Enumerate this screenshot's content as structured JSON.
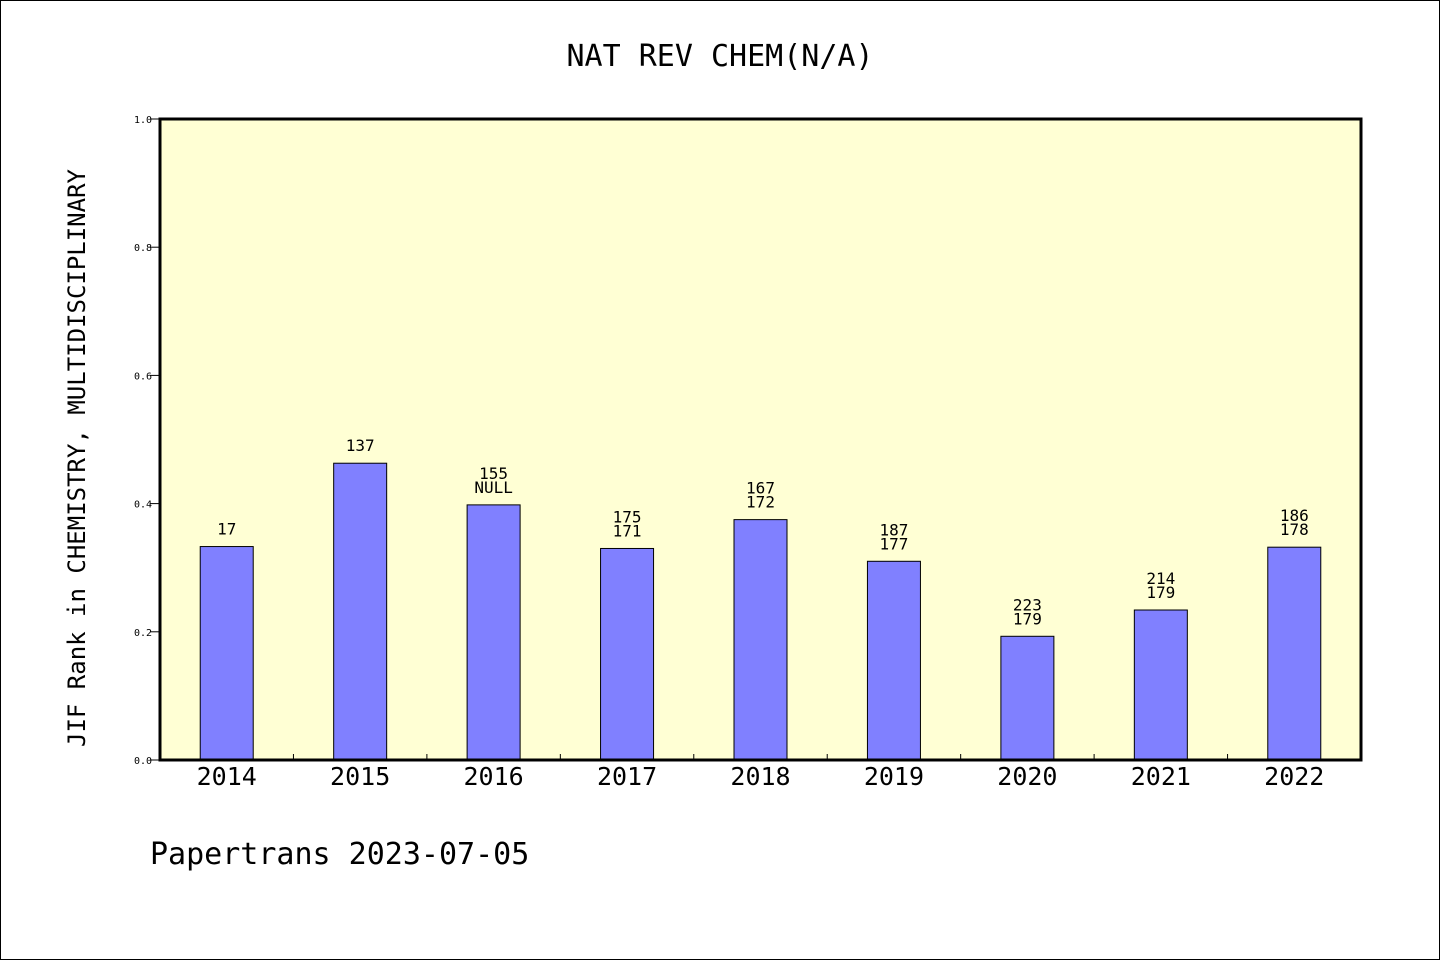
{
  "chart_data": {
    "type": "bar",
    "title": "NAT REV CHEM(N/A)",
    "ylabel": "JIF Rank in CHEMISTRY, MULTIDISCIPLINARY",
    "xlabel": "",
    "footer": "Papertrans 2023-07-05",
    "categories": [
      "2014",
      "2015",
      "2016",
      "2017",
      "2018",
      "2019",
      "2020",
      "2021",
      "2022"
    ],
    "values": [
      0.333,
      0.463,
      0.398,
      0.33,
      0.375,
      0.31,
      0.193,
      0.234,
      0.332
    ],
    "labels": [
      [
        "17"
      ],
      [
        "137"
      ],
      [
        "155",
        "NULL"
      ],
      [
        "175",
        "171"
      ],
      [
        "167",
        "172"
      ],
      [
        "187",
        "177"
      ],
      [
        "223",
        "179"
      ],
      [
        "214",
        "179"
      ],
      [
        "186",
        "178"
      ]
    ],
    "ylim": [
      0,
      1.0
    ],
    "yticks": [
      "0.0",
      "0.2",
      "0.4",
      "0.6",
      "0.8",
      "1.0"
    ],
    "grid": false,
    "colors": {
      "plot_background": "#ffffd4",
      "bar_fill": "#8080ff",
      "bar_stroke": "#000000",
      "frame": "#000000"
    }
  }
}
